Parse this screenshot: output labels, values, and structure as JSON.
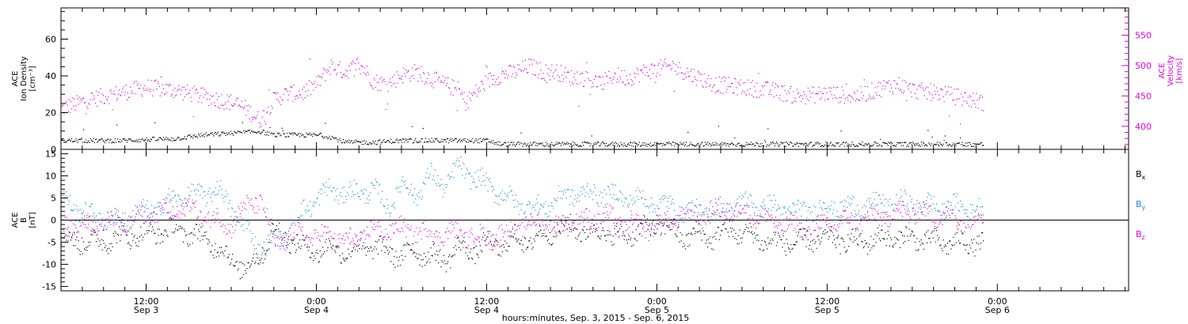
{
  "chart_data": [
    {
      "type": "scatter",
      "panel": "top",
      "ylabel_left": [
        "ACE",
        "Ion Density",
        "[cm⁻³]"
      ],
      "ylabel_right": [
        "ACE",
        "Velocity",
        "[km/s]"
      ],
      "ylim_left": [
        0,
        77
      ],
      "ylim_right": [
        362,
        595
      ],
      "yticks_left": [
        0,
        20,
        40,
        60
      ],
      "yticks_right": [
        400,
        450,
        500,
        550
      ],
      "colors": {
        "density": "#000000",
        "velocity": "#dd00dd"
      },
      "series": [
        {
          "key": "velocity",
          "axis": "right",
          "knots": [
            [
              0,
              430
            ],
            [
              4,
              445
            ],
            [
              8,
              455
            ],
            [
              12,
              465
            ],
            [
              16,
              460
            ],
            [
              20,
              450
            ],
            [
              24,
              440
            ],
            [
              26,
              430
            ],
            [
              28,
              410
            ],
            [
              30,
              445
            ],
            [
              32,
              455
            ],
            [
              34,
              455
            ],
            [
              36,
              470
            ],
            [
              38,
              500
            ],
            [
              40,
              490
            ],
            [
              42,
              505
            ],
            [
              44,
              475
            ],
            [
              46,
              470
            ],
            [
              48,
              485
            ],
            [
              50,
              490
            ],
            [
              52,
              480
            ],
            [
              54,
              470
            ],
            [
              56,
              460
            ],
            [
              57,
              440
            ],
            [
              60,
              475
            ],
            [
              62,
              485
            ],
            [
              64,
              490
            ],
            [
              66,
              500
            ],
            [
              68,
              490
            ],
            [
              70,
              490
            ],
            [
              72,
              480
            ],
            [
              74,
              480
            ],
            [
              76,
              470
            ],
            [
              78,
              485
            ],
            [
              80,
              480
            ],
            [
              82,
              490
            ],
            [
              84,
              495
            ],
            [
              86,
              500
            ],
            [
              88,
              490
            ],
            [
              90,
              480
            ],
            [
              92,
              470
            ],
            [
              96,
              465
            ],
            [
              100,
              460
            ],
            [
              104,
              450
            ],
            [
              108,
              455
            ],
            [
              112,
              450
            ],
            [
              116,
              465
            ],
            [
              118,
              470
            ],
            [
              120,
              460
            ],
            [
              124,
              455
            ],
            [
              128,
              445
            ],
            [
              130,
              440
            ]
          ]
        },
        {
          "key": "density",
          "axis": "left",
          "knots": [
            [
              0,
              5
            ],
            [
              8,
              5
            ],
            [
              16,
              6
            ],
            [
              20,
              8
            ],
            [
              24,
              9
            ],
            [
              28,
              10
            ],
            [
              30,
              8
            ],
            [
              32,
              8
            ],
            [
              36,
              8
            ],
            [
              38,
              7
            ],
            [
              40,
              4
            ],
            [
              44,
              4
            ],
            [
              48,
              5
            ],
            [
              52,
              5
            ],
            [
              56,
              5
            ],
            [
              60,
              5
            ],
            [
              62,
              3
            ],
            [
              70,
              3
            ],
            [
              72,
              3
            ],
            [
              76,
              3
            ],
            [
              80,
              3
            ],
            [
              86,
              3
            ],
            [
              90,
              3
            ],
            [
              100,
              3
            ],
            [
              110,
              3
            ],
            [
              120,
              3
            ],
            [
              130,
              3
            ]
          ]
        }
      ]
    },
    {
      "type": "scatter",
      "panel": "bottom",
      "ylabel_left": [
        "ACE",
        "B",
        "[nT]"
      ],
      "ylim": [
        -16,
        16
      ],
      "yticks": [
        -15,
        -10,
        -5,
        0,
        5,
        10,
        15
      ],
      "legend_placement": "right",
      "colors": {
        "Bx": "#000000",
        "By": "#1e88e5",
        "Bz": "#dd00dd"
      },
      "series": [
        {
          "name": "Bx",
          "label_main": "B",
          "label_sub": "x",
          "knots": [
            [
              0,
              -4
            ],
            [
              4,
              -5
            ],
            [
              8,
              -4
            ],
            [
              12,
              -3
            ],
            [
              16,
              -2
            ],
            [
              20,
              -4
            ],
            [
              22,
              -6
            ],
            [
              24,
              -9
            ],
            [
              26,
              -11
            ],
            [
              28,
              -8
            ],
            [
              30,
              -2
            ],
            [
              32,
              -4
            ],
            [
              34,
              -6
            ],
            [
              36,
              -7
            ],
            [
              38,
              -6
            ],
            [
              40,
              -7
            ],
            [
              44,
              -6
            ],
            [
              48,
              -8
            ],
            [
              50,
              -7
            ],
            [
              54,
              -9
            ],
            [
              56,
              -6
            ],
            [
              58,
              -7
            ],
            [
              60,
              -5
            ],
            [
              62,
              -6
            ],
            [
              64,
              -4
            ],
            [
              66,
              -5
            ],
            [
              68,
              -3
            ],
            [
              70,
              -2
            ],
            [
              72,
              -1
            ],
            [
              74,
              -3
            ],
            [
              76,
              -2
            ],
            [
              78,
              -4
            ],
            [
              80,
              -3
            ],
            [
              82,
              -2
            ],
            [
              84,
              -1
            ],
            [
              86,
              -2
            ],
            [
              88,
              -4
            ],
            [
              90,
              -3
            ],
            [
              92,
              -4
            ],
            [
              94,
              -2
            ],
            [
              96,
              -3
            ],
            [
              100,
              -5
            ],
            [
              104,
              -5
            ],
            [
              108,
              -4
            ],
            [
              112,
              -5
            ],
            [
              116,
              -4
            ],
            [
              120,
              -4
            ],
            [
              124,
              -5
            ],
            [
              128,
              -5
            ],
            [
              130,
              -5
            ]
          ]
        },
        {
          "name": "By",
          "label_main": "B",
          "label_sub": "y",
          "knots": [
            [
              0,
              5
            ],
            [
              4,
              1
            ],
            [
              8,
              0
            ],
            [
              12,
              2
            ],
            [
              16,
              5
            ],
            [
              20,
              6
            ],
            [
              22,
              7
            ],
            [
              24,
              3
            ],
            [
              26,
              -2
            ],
            [
              28,
              -6
            ],
            [
              30,
              -5
            ],
            [
              32,
              -3
            ],
            [
              34,
              2
            ],
            [
              36,
              5
            ],
            [
              38,
              7
            ],
            [
              40,
              6
            ],
            [
              44,
              7
            ],
            [
              46,
              3
            ],
            [
              48,
              8
            ],
            [
              50,
              6
            ],
            [
              52,
              10
            ],
            [
              54,
              8
            ],
            [
              56,
              12
            ],
            [
              58,
              10
            ],
            [
              60,
              8
            ],
            [
              62,
              6
            ],
            [
              64,
              4
            ],
            [
              66,
              3
            ],
            [
              68,
              3
            ],
            [
              70,
              5
            ],
            [
              72,
              6
            ],
            [
              76,
              6
            ],
            [
              80,
              5
            ],
            [
              84,
              4
            ],
            [
              88,
              2
            ],
            [
              92,
              2
            ],
            [
              96,
              4
            ],
            [
              100,
              3
            ],
            [
              104,
              2
            ],
            [
              108,
              3
            ],
            [
              112,
              3
            ],
            [
              116,
              4
            ],
            [
              120,
              4
            ],
            [
              124,
              3
            ],
            [
              128,
              3
            ],
            [
              130,
              2
            ]
          ]
        },
        {
          "name": "Bz",
          "label_main": "B",
          "label_sub": "z",
          "knots": [
            [
              0,
              -1
            ],
            [
              4,
              -1
            ],
            [
              8,
              0
            ],
            [
              12,
              1
            ],
            [
              16,
              2
            ],
            [
              18,
              3
            ],
            [
              20,
              1
            ],
            [
              24,
              -1
            ],
            [
              26,
              3
            ],
            [
              28,
              5
            ],
            [
              30,
              -5
            ],
            [
              32,
              -4
            ],
            [
              34,
              -3
            ],
            [
              36,
              -4
            ],
            [
              38,
              -3
            ],
            [
              40,
              -5
            ],
            [
              44,
              -2
            ],
            [
              48,
              -2
            ],
            [
              52,
              -3
            ],
            [
              56,
              -3
            ],
            [
              60,
              -4
            ],
            [
              62,
              -3
            ],
            [
              64,
              -2
            ],
            [
              66,
              -1
            ],
            [
              68,
              0
            ],
            [
              70,
              -2
            ],
            [
              72,
              0
            ],
            [
              74,
              0
            ],
            [
              76,
              1
            ],
            [
              78,
              0
            ],
            [
              80,
              -1
            ],
            [
              82,
              -2
            ],
            [
              84,
              -1
            ],
            [
              86,
              0
            ],
            [
              88,
              1
            ],
            [
              92,
              2
            ],
            [
              96,
              2
            ],
            [
              100,
              0
            ],
            [
              104,
              -2
            ],
            [
              108,
              -1
            ],
            [
              112,
              0
            ],
            [
              116,
              1
            ],
            [
              120,
              2
            ],
            [
              124,
              1
            ],
            [
              128,
              0
            ],
            [
              130,
              1
            ]
          ]
        }
      ]
    },
    {
      "type": "axis",
      "panel": "time",
      "xlabel": "hours:minutes, Sep.  3, 2015 - Sep.  6, 2015",
      "xlim_hours": [
        0,
        150.5
      ],
      "xticks": [
        {
          "h": 12,
          "time": "12:00",
          "date": "Sep 3"
        },
        {
          "h": 36,
          "time": "0:00",
          "date": "Sep 4"
        },
        {
          "h": 60,
          "time": "12:00",
          "date": "Sep 4"
        },
        {
          "h": 84,
          "time": "0:00",
          "date": "Sep 5"
        },
        {
          "h": 108,
          "time": "12:00",
          "date": "Sep 5"
        },
        {
          "h": 132,
          "time": "0:00",
          "date": "Sep 6"
        }
      ]
    }
  ]
}
